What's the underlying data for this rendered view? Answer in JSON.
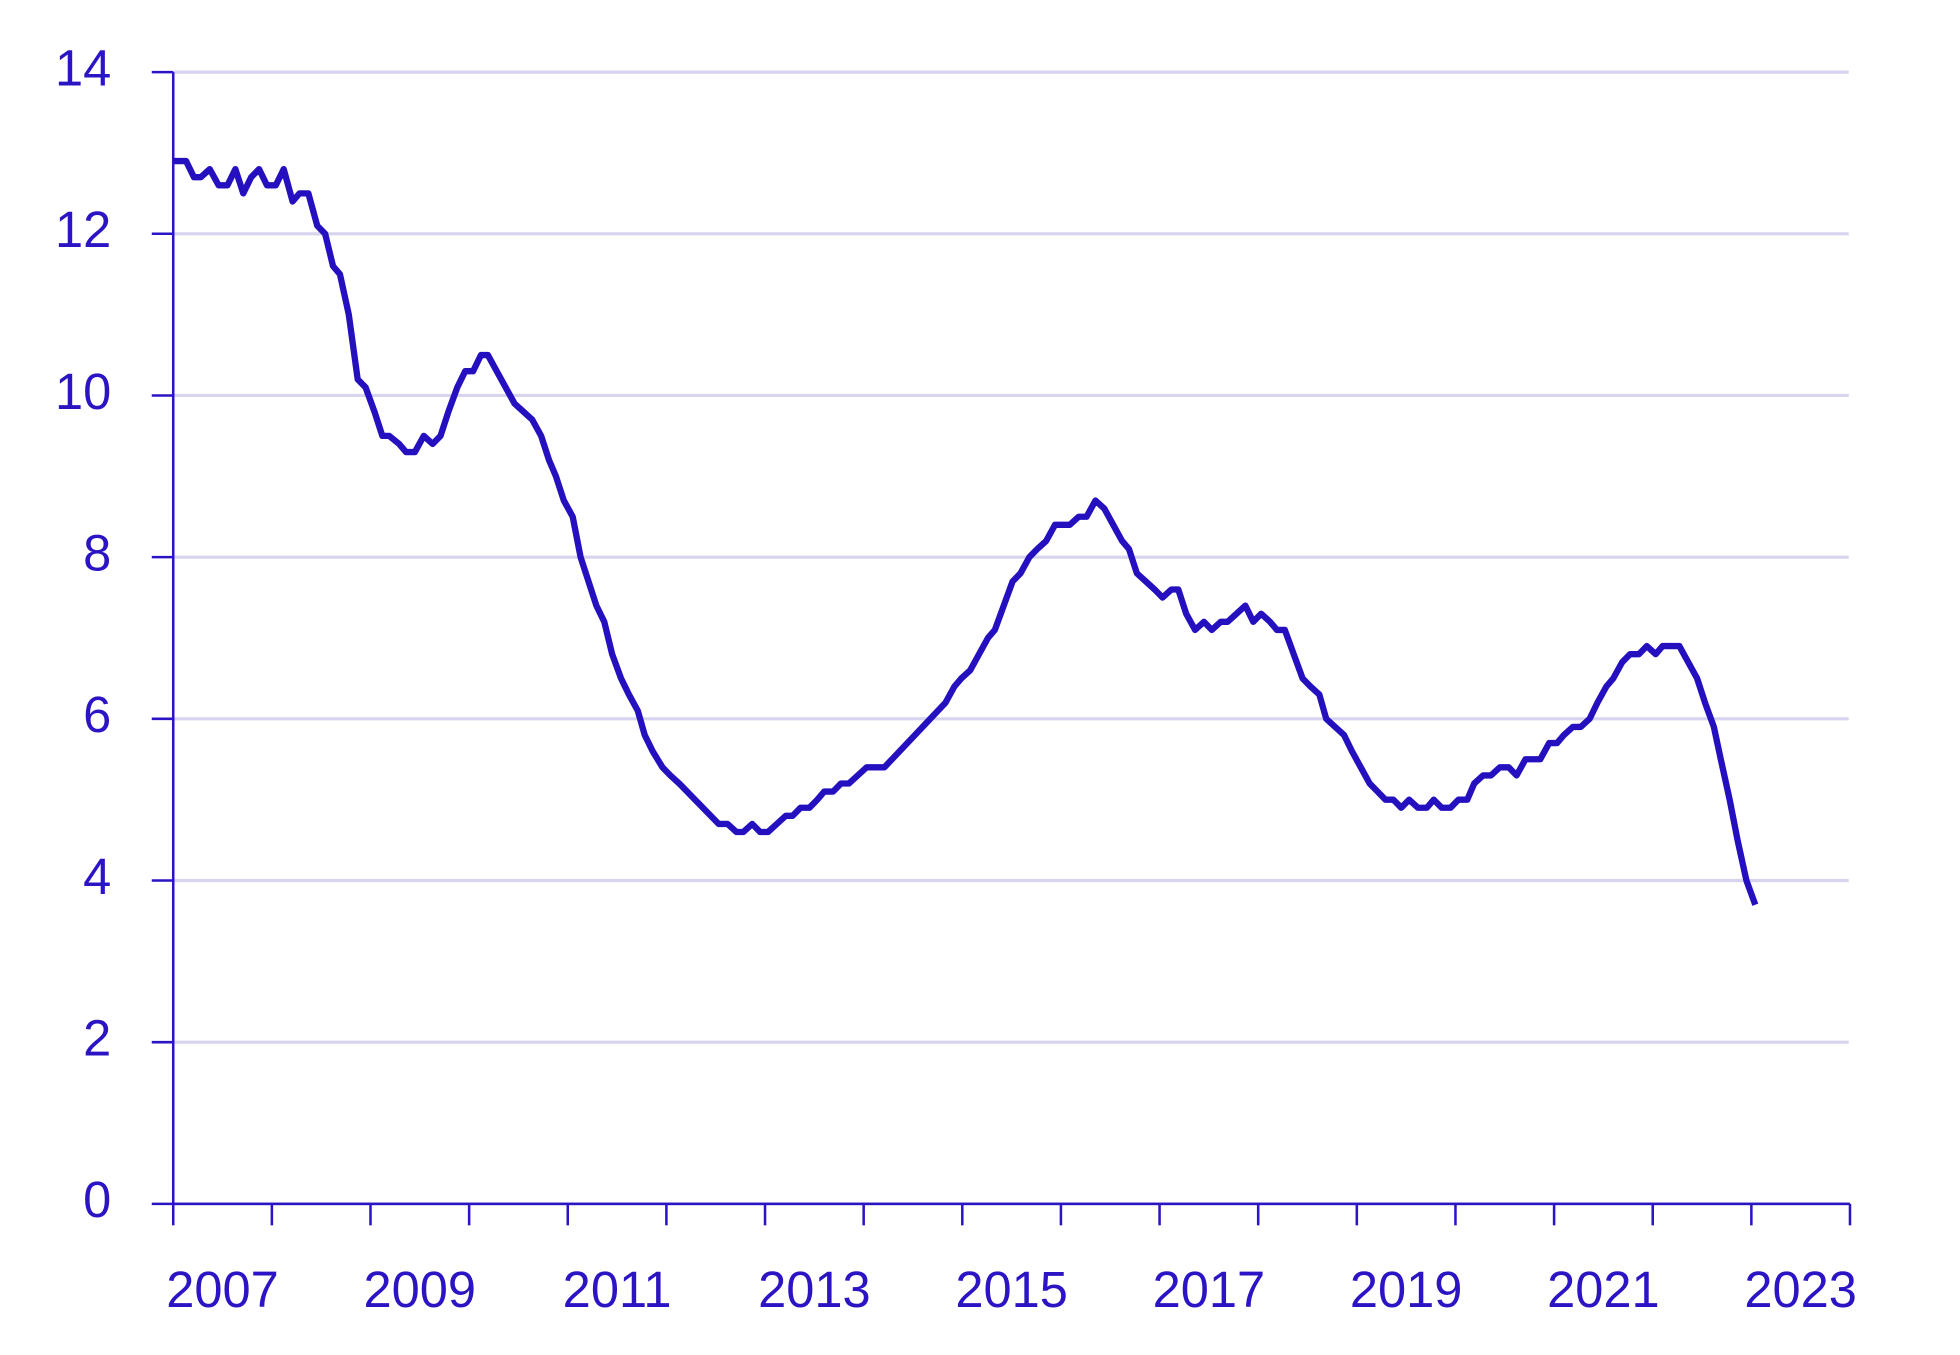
{
  "chart_data": {
    "type": "line",
    "x": [
      2007.0,
      2007.13,
      2007.21,
      2007.28,
      2007.37,
      2007.46,
      2007.55,
      2007.63,
      2007.71,
      2007.79,
      2007.87,
      2007.95,
      2008.04,
      2008.12,
      2008.21,
      2008.28,
      2008.37,
      2008.46,
      2008.54,
      2008.62,
      2008.69,
      2008.78,
      2008.87,
      2008.95,
      2009.04,
      2009.12,
      2009.19,
      2009.29,
      2009.36,
      2009.45,
      2009.54,
      2009.63,
      2009.71,
      2009.79,
      2009.88,
      2009.96,
      2010.04,
      2010.12,
      2010.19,
      2010.28,
      2010.37,
      2010.46,
      2010.55,
      2010.64,
      2010.73,
      2010.81,
      2010.88,
      2010.96,
      2011.05,
      2011.13,
      2011.21,
      2011.29,
      2011.37,
      2011.45,
      2011.54,
      2011.62,
      2011.71,
      2011.78,
      2011.86,
      2011.96,
      2012.04,
      2012.13,
      2012.53,
      2012.62,
      2012.71,
      2012.78,
      2012.87,
      2012.95,
      2013.03,
      2013.12,
      2013.21,
      2013.28,
      2013.36,
      2013.45,
      2013.53,
      2013.6,
      2013.69,
      2013.77,
      2013.85,
      2013.94,
      2014.03,
      2014.21,
      2014.83,
      2014.92,
      2014.99,
      2015.08,
      2015.17,
      2015.26,
      2015.33,
      2015.42,
      2015.51,
      2015.59,
      2015.68,
      2015.76,
      2015.85,
      2015.94,
      2016.09,
      2016.18,
      2016.26,
      2016.35,
      2016.44,
      2016.53,
      2016.62,
      2016.69,
      2016.77,
      2016.86,
      2016.95,
      2017.03,
      2017.12,
      2017.19,
      2017.27,
      2017.36,
      2017.45,
      2017.53,
      2017.62,
      2017.69,
      2017.78,
      2017.87,
      2017.95,
      2018.03,
      2018.12,
      2018.19,
      2018.27,
      2018.36,
      2018.45,
      2018.53,
      2018.62,
      2018.69,
      2018.78,
      2018.87,
      2018.95,
      2019.04,
      2019.13,
      2019.21,
      2019.29,
      2019.37,
      2019.45,
      2019.53,
      2019.62,
      2019.71,
      2019.78,
      2019.86,
      2019.95,
      2020.03,
      2020.12,
      2020.19,
      2020.28,
      2020.36,
      2020.45,
      2020.54,
      2020.62,
      2020.71,
      2020.86,
      2020.95,
      2021.03,
      2021.1,
      2021.19,
      2021.27,
      2021.36,
      2021.44,
      2021.53,
      2021.6,
      2021.69,
      2021.77,
      2021.86,
      2021.94,
      2022.03,
      2022.1,
      2022.27,
      2022.36,
      2022.45,
      2022.53,
      2022.62,
      2022.69,
      2022.78,
      2022.86,
      2022.95,
      2023.04
    ],
    "series": [
      {
        "color": "#2510c0",
        "values": [
          12.9,
          12.9,
          12.7,
          12.7,
          12.8,
          12.6,
          12.6,
          12.8,
          12.5,
          12.7,
          12.8,
          12.6,
          12.6,
          12.8,
          12.4,
          12.5,
          12.5,
          12.1,
          12.0,
          11.6,
          11.5,
          11.0,
          10.2,
          10.1,
          9.8,
          9.5,
          9.5,
          9.4,
          9.3,
          9.3,
          9.5,
          9.4,
          9.5,
          9.8,
          10.1,
          10.3,
          10.3,
          10.5,
          10.5,
          10.3,
          10.1,
          9.9,
          9.8,
          9.7,
          9.5,
          9.2,
          9.0,
          8.7,
          8.5,
          8.0,
          7.7,
          7.4,
          7.2,
          6.8,
          6.5,
          6.3,
          6.1,
          5.8,
          5.6,
          5.4,
          5.3,
          5.2,
          4.7,
          4.7,
          4.6,
          4.6,
          4.7,
          4.6,
          4.6,
          4.7,
          4.8,
          4.8,
          4.9,
          4.9,
          5.0,
          5.1,
          5.1,
          5.2,
          5.2,
          5.3,
          5.4,
          5.4,
          6.2,
          6.4,
          6.5,
          6.6,
          6.8,
          7.0,
          7.1,
          7.4,
          7.7,
          7.8,
          8.0,
          8.1,
          8.2,
          8.4,
          8.4,
          8.5,
          8.5,
          8.7,
          8.6,
          8.4,
          8.2,
          8.1,
          7.8,
          7.7,
          7.6,
          7.5,
          7.6,
          7.6,
          7.3,
          7.1,
          7.2,
          7.1,
          7.2,
          7.2,
          7.3,
          7.4,
          7.2,
          7.3,
          7.2,
          7.1,
          7.1,
          6.8,
          6.5,
          6.4,
          6.3,
          6.0,
          5.9,
          5.8,
          5.6,
          5.4,
          5.2,
          5.1,
          5.0,
          5.0,
          4.9,
          5.0,
          4.9,
          4.9,
          5.0,
          4.9,
          4.9,
          5.0,
          5.0,
          5.2,
          5.3,
          5.3,
          5.4,
          5.4,
          5.3,
          5.5,
          5.5,
          5.7,
          5.7,
          5.8,
          5.9,
          5.9,
          6.0,
          6.2,
          6.4,
          6.5,
          6.7,
          6.8,
          6.8,
          6.9,
          6.8,
          6.9,
          6.9,
          6.7,
          6.5,
          6.2,
          5.9,
          5.5,
          5.0,
          4.5,
          4.0,
          3.7
        ]
      }
    ],
    "xlim": [
      2007,
      2024
    ],
    "xticks": [
      {
        "value": 2007.5,
        "label": "2007"
      },
      {
        "value": 2009.5,
        "label": "2009"
      },
      {
        "value": 2011.5,
        "label": "2011"
      },
      {
        "value": 2013.5,
        "label": "2013"
      },
      {
        "value": 2015.5,
        "label": "2015"
      },
      {
        "value": 2017.5,
        "label": "2017"
      },
      {
        "value": 2019.5,
        "label": "2019"
      },
      {
        "value": 2021.5,
        "label": "2021"
      },
      {
        "value": 2023.5,
        "label": "2023"
      }
    ],
    "xminor_ticks": [
      2007,
      2008,
      2009,
      2010,
      2011,
      2012,
      2013,
      2014,
      2015,
      2016,
      2017,
      2018,
      2019,
      2020,
      2021,
      2022,
      2023,
      2024
    ],
    "ylim": [
      0,
      14
    ],
    "yticks": [
      0,
      2,
      4,
      6,
      8,
      10,
      12,
      14
    ],
    "grid": true,
    "text_color": "#2b14c4",
    "grid_color": "#d6d4ee"
  }
}
